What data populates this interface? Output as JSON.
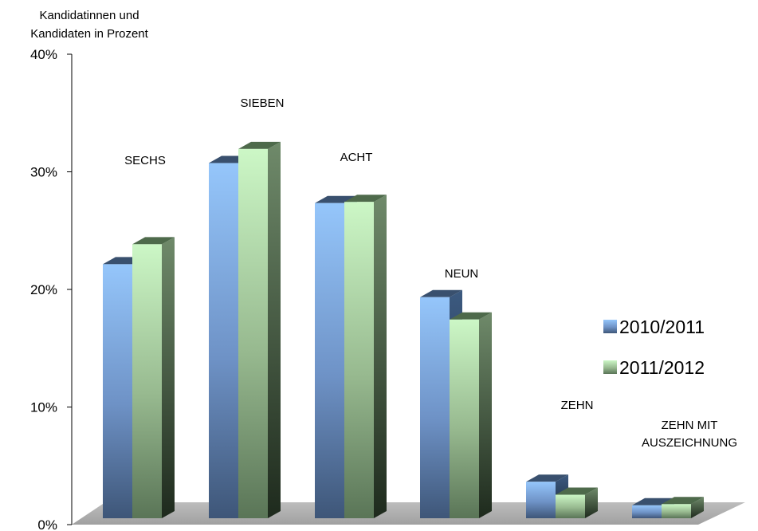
{
  "chart_data": {
    "type": "bar",
    "title": "",
    "ylabel": "Kandidatinnen und Kandidaten in Prozent",
    "ylabel_lines": [
      "Kandidatinnen und",
      "Kandidaten in Prozent"
    ],
    "xlabel": "",
    "ylim": [
      0,
      40
    ],
    "yticks": [
      0,
      10,
      20,
      30,
      40
    ],
    "ytick_labels": [
      "0%",
      "10%",
      "20%",
      "30%",
      "40%"
    ],
    "grid": false,
    "legend_position": "right",
    "categories": [
      "SECHS",
      "SIEBEN",
      "ACHT",
      "NEUN",
      "ZEHN",
      "ZEHN MIT AUSZEICHNUNG"
    ],
    "category_label_lines": [
      [
        "SECHS"
      ],
      [
        "SIEBEN"
      ],
      [
        "ACHT"
      ],
      [
        "NEUN"
      ],
      [
        "ZEHN"
      ],
      [
        "ZEHN MIT",
        "AUSZEICHNUNG"
      ]
    ],
    "series": [
      {
        "name": "2010/2011",
        "color": "#8fc0f5",
        "values": [
          21.6,
          30.2,
          26.8,
          18.8,
          3.1,
          1.1
        ]
      },
      {
        "name": "2011/2012",
        "color": "#c8f5c2",
        "values": [
          23.3,
          31.4,
          26.9,
          16.9,
          2.0,
          1.2
        ]
      }
    ]
  }
}
